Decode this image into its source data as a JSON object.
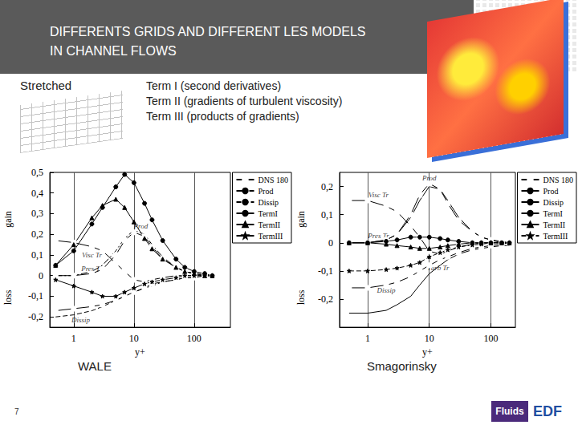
{
  "slide": {
    "title": [
      "DIFFERENTS GRIDS AND DIFFERENT LES MODELS",
      "IN CHANNEL FLOWS"
    ],
    "grid_label": "Stretched",
    "terms": [
      "Term I (second derivatives)",
      "Term II (gradients of turbulent viscosity)",
      "Term III (products of gradients)"
    ],
    "page_number": "7",
    "logos": [
      "Fluids",
      "EDF"
    ]
  },
  "chart_data": [
    {
      "type": "line",
      "title": "WALE",
      "x_label": "y+",
      "y_labels": [
        "gain",
        "loss"
      ],
      "log": "x",
      "grid": true,
      "legend": "right",
      "x": [
        0.5,
        1,
        2,
        3,
        5,
        7,
        10,
        15,
        20,
        30,
        50,
        70,
        100,
        150,
        200
      ],
      "xlim": [
        0.4,
        400
      ],
      "xticks": [
        1,
        10,
        100
      ],
      "ylim": [
        -0.25,
        0.5
      ],
      "yticks": [
        {
          "value": -0.2,
          "label": "-0,2"
        },
        {
          "value": -0.1,
          "label": "-0,1"
        },
        0,
        {
          "value": 0.1,
          "label": "0,1"
        },
        {
          "value": 0.2,
          "label": "0,2"
        },
        {
          "value": 0.3,
          "label": "0,3"
        },
        {
          "value": 0.4,
          "label": "0,4"
        },
        {
          "value": 0.5,
          "label": "0,5"
        }
      ],
      "series": [
        {
          "name": "DNS 180",
          "color": "#000000",
          "marker": "square",
          "line_style": "solid",
          "values": [
            0,
            0,
            0.01,
            0.03,
            0.1,
            0.17,
            0.21,
            0.19,
            0.14,
            0.08,
            0.04,
            0.02,
            0.01,
            0.005,
            0
          ]
        },
        {
          "name": "DNS 180",
          "color": "#000000",
          "marker": "square",
          "line_style": "solid",
          "values": [
            0.17,
            0.16,
            0.14,
            0.12,
            0.06,
            0.02,
            -0.02,
            -0.03,
            -0.02,
            -0.01,
            0,
            0,
            0,
            0,
            0
          ]
        },
        {
          "name": "DNS 180",
          "color": "#000000",
          "marker": "square",
          "line_style": "solid",
          "values": [
            -0.17,
            -0.16,
            -0.15,
            -0.14,
            -0.12,
            -0.1,
            -0.08,
            -0.06,
            -0.04,
            -0.03,
            -0.02,
            -0.01,
            -0.01,
            0,
            0
          ]
        },
        {
          "name": "Prod",
          "color": "#000000",
          "marker": "none",
          "line_style": "dashdot",
          "values": [
            0,
            0,
            0.02,
            0.05,
            0.12,
            0.18,
            0.22,
            0.2,
            0.15,
            0.09,
            0.04,
            0.02,
            0.01,
            0,
            0
          ]
        },
        {
          "name": "Dissip",
          "color": "#000000",
          "marker": "none",
          "line_style": "dashed",
          "values": [
            -0.2,
            -0.19,
            -0.17,
            -0.15,
            -0.12,
            -0.1,
            -0.08,
            -0.06,
            -0.05,
            -0.03,
            -0.02,
            -0.01,
            -0.01,
            0,
            0
          ]
        },
        {
          "name": "TermI",
          "color": "#000000",
          "marker": "circle",
          "line_style": "solid",
          "values": [
            0.05,
            0.12,
            0.25,
            0.33,
            0.43,
            0.49,
            0.45,
            0.35,
            0.27,
            0.17,
            0.08,
            0.04,
            0.02,
            0.01,
            0
          ]
        },
        {
          "name": "TermII",
          "color": "#000000",
          "marker": "triangle",
          "line_style": "solid",
          "values": [
            0.05,
            0.15,
            0.28,
            0.34,
            0.37,
            0.33,
            0.26,
            0.18,
            0.13,
            0.08,
            0.04,
            0.02,
            0.01,
            0,
            0
          ]
        },
        {
          "name": "TermIII",
          "color": "#000000",
          "marker": "star",
          "line_style": "solid",
          "values": [
            -0.02,
            -0.05,
            -0.08,
            -0.1,
            -0.1,
            -0.08,
            -0.06,
            -0.04,
            -0.03,
            -0.02,
            -0.01,
            0,
            0,
            0,
            0
          ]
        }
      ],
      "annotations": [
        {
          "text": "Visc Tr",
          "x": 2,
          "y": 0.1
        },
        {
          "text": "Prod",
          "x": 13,
          "y": 0.24
        },
        {
          "text": "Pres Tr",
          "x": 2,
          "y": 0.035
        },
        {
          "text": "Dissip",
          "x": 1.3,
          "y": -0.215
        }
      ]
    },
    {
      "type": "line",
      "title": "Smagorinsky",
      "x_label": "y+",
      "y_labels": [
        "gain",
        "loss"
      ],
      "log": "x",
      "grid": true,
      "legend": "right",
      "x": [
        0.5,
        1,
        2,
        3,
        5,
        7,
        10,
        15,
        20,
        30,
        50,
        70,
        100,
        150,
        200
      ],
      "xlim": [
        0.35,
        250
      ],
      "xticks": [
        1,
        10,
        100
      ],
      "ylim": [
        -0.3,
        0.25
      ],
      "yticks": [
        {
          "value": -0.2,
          "label": "-0,2"
        },
        {
          "value": -0.1,
          "label": "-0,1"
        },
        0,
        {
          "value": 0.1,
          "label": "0,1"
        },
        {
          "value": 0.2,
          "label": "0,2"
        }
      ],
      "series": [
        {
          "name": "DNS 180",
          "color": "#000000",
          "marker": "square",
          "line_style": "solid",
          "values": [
            0,
            0,
            0.01,
            0.03,
            0.1,
            0.17,
            0.21,
            0.19,
            0.14,
            0.08,
            0.04,
            0.02,
            0.01,
            0.005,
            0
          ]
        },
        {
          "name": "DNS 180",
          "color": "#000000",
          "marker": "square",
          "line_style": "solid",
          "values": [
            0.15,
            0.15,
            0.13,
            0.11,
            0.06,
            0.02,
            -0.03,
            -0.04,
            -0.03,
            -0.015,
            -0.005,
            0,
            0,
            0,
            0
          ]
        },
        {
          "name": "DNS 180",
          "color": "#000000",
          "marker": "square",
          "line_style": "solid",
          "values": [
            -0.16,
            -0.16,
            -0.15,
            -0.14,
            -0.12,
            -0.1,
            -0.08,
            -0.06,
            -0.05,
            -0.035,
            -0.02,
            -0.015,
            -0.01,
            -0.005,
            0
          ]
        },
        {
          "name": "Prod",
          "color": "#000000",
          "marker": "none",
          "line_style": "solid",
          "values": [
            0,
            0,
            0.01,
            0.03,
            0.09,
            0.15,
            0.2,
            0.19,
            0.15,
            0.09,
            0.04,
            0.02,
            0.01,
            0,
            0
          ]
        },
        {
          "name": "Dissip",
          "color": "#000000",
          "marker": "none",
          "line_style": "solid",
          "values": [
            -0.25,
            -0.25,
            -0.24,
            -0.22,
            -0.19,
            -0.15,
            -0.11,
            -0.08,
            -0.06,
            -0.04,
            -0.025,
            -0.02,
            -0.015,
            -0.01,
            -0.01
          ]
        },
        {
          "name": "TermI",
          "color": "#000000",
          "marker": "circle",
          "line_style": "solid",
          "values": [
            0,
            0,
            0.005,
            0.01,
            0.02,
            0.02,
            0.02,
            0.015,
            0.01,
            0.005,
            0,
            0,
            0,
            0,
            0
          ]
        },
        {
          "name": "TermII",
          "color": "#000000",
          "marker": "triangle",
          "line_style": "solid",
          "values": [
            0,
            0,
            -0.005,
            -0.01,
            -0.015,
            -0.02,
            -0.02,
            -0.015,
            -0.01,
            -0.005,
            0,
            0,
            0,
            0,
            0
          ]
        },
        {
          "name": "TermIII",
          "color": "#000000",
          "marker": "star",
          "line_style": "dashed",
          "values": [
            -0.1,
            -0.1,
            -0.095,
            -0.09,
            -0.08,
            -0.07,
            -0.05,
            -0.035,
            -0.025,
            -0.015,
            -0.008,
            -0.005,
            0,
            0,
            0
          ]
        }
      ],
      "annotations": [
        {
          "text": "Visc Tr",
          "x": 1.5,
          "y": 0.17
        },
        {
          "text": "Prod",
          "x": 10,
          "y": 0.23
        },
        {
          "text": "Pres Tr",
          "x": 1.5,
          "y": 0.025
        },
        {
          "text": "Turb Tr",
          "x": 14,
          "y": -0.09
        },
        {
          "text": "Dissip",
          "x": 2,
          "y": -0.17
        }
      ]
    }
  ]
}
